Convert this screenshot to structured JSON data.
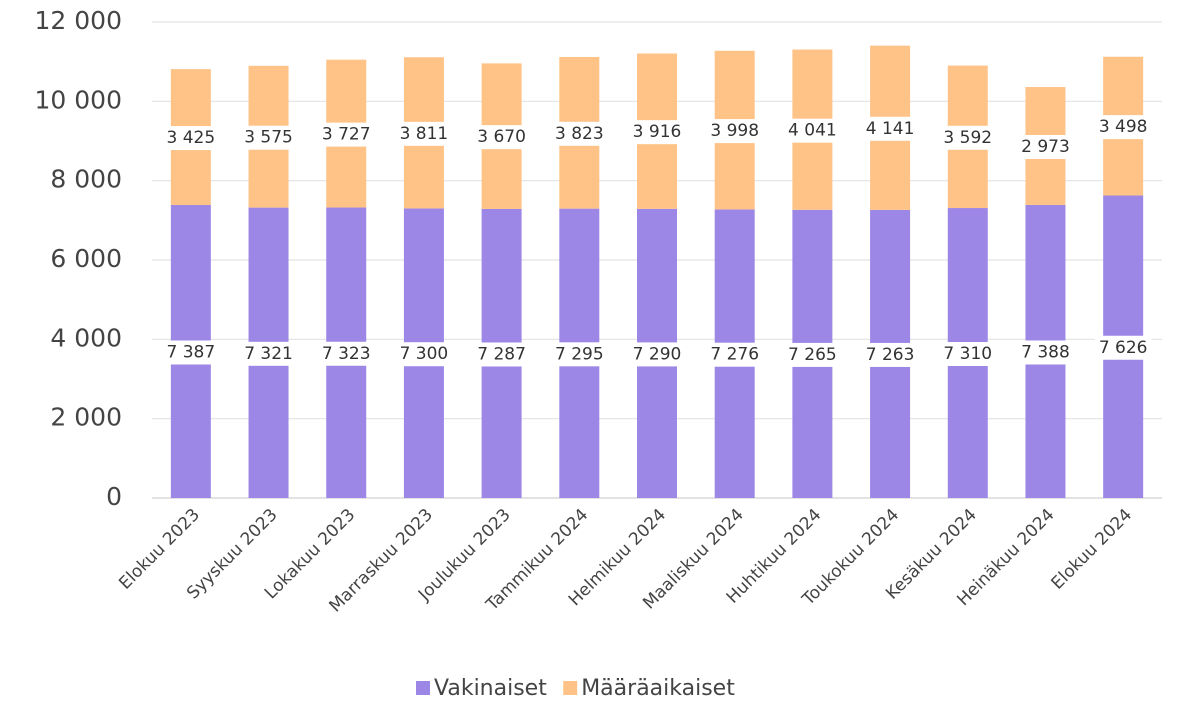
{
  "chart_data": {
    "type": "stacked_bar",
    "categories": [
      "Elokuu 2023",
      "Syyskuu 2023",
      "Lokakuu 2023",
      "Marraskuu 2023",
      "Joulukuu 2023",
      "Tammikuu 2024",
      "Helmikuu 2024",
      "Maaliskuu 2024",
      "Huhtikuu 2024",
      "Toukokuu 2024",
      "Kesäkuu 2024",
      "Heinäkuu 2024",
      "Elokuu 2024"
    ],
    "series": [
      {
        "name": "Vakinaiset",
        "color": "#9d87e6",
        "values": [
          7387,
          7321,
          7323,
          7300,
          7287,
          7295,
          7290,
          7276,
          7265,
          7263,
          7310,
          7388,
          7626
        ],
        "value_labels": [
          "7 387",
          "7 321",
          "7 323",
          "7 300",
          "7 287",
          "7 295",
          "7 290",
          "7 276",
          "7 265",
          "7 263",
          "7 310",
          "7 388",
          "7 626"
        ]
      },
      {
        "name": "Määräaikaiset",
        "color": "#ffc387",
        "values": [
          3425,
          3575,
          3727,
          3811,
          3670,
          3823,
          3916,
          3998,
          4041,
          4141,
          3592,
          2973,
          3498
        ],
        "value_labels": [
          "3 425",
          "3 575",
          "3 727",
          "3 811",
          "3 670",
          "3 823",
          "3 916",
          "3 998",
          "4 041",
          "4 141",
          "3 592",
          "2 973",
          "3 498"
        ]
      }
    ],
    "ylim": [
      0,
      12000
    ],
    "yticks": [
      0,
      {
        "value": 2000,
        "label": "2 000"
      },
      {
        "value": 4000,
        "label": "4 000"
      },
      {
        "value": 6000,
        "label": "6 000"
      },
      {
        "value": 8000,
        "label": "8 000"
      },
      {
        "value": 10000,
        "label": "10 000"
      },
      {
        "value": 12000,
        "label": "12 000"
      }
    ],
    "grid": true,
    "legend": "bottom"
  }
}
